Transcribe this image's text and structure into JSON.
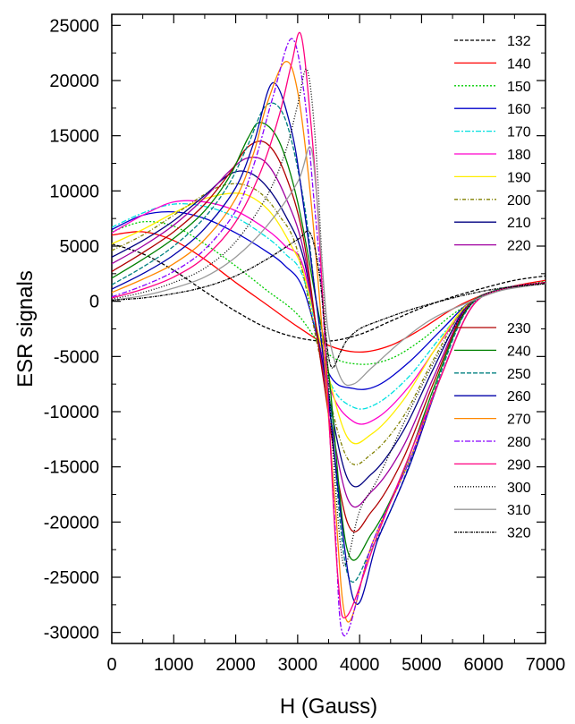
{
  "chart_data": {
    "type": "line",
    "title": "",
    "xlabel": "H (Gauss)",
    "ylabel": "ESR signals",
    "xlim": [
      0,
      7000
    ],
    "ylim": [
      -31000,
      26000
    ],
    "x_ticks": [
      0,
      1000,
      2000,
      3000,
      4000,
      5000,
      6000,
      7000
    ],
    "y_ticks": [
      -30000,
      -25000,
      -20000,
      -15000,
      -10000,
      -5000,
      0,
      5000,
      10000,
      15000,
      20000,
      25000
    ],
    "x_tick_labels": [
      "0",
      "1000",
      "2000",
      "3000",
      "4000",
      "5000",
      "6000",
      "7000"
    ],
    "y_tick_labels": [
      "-30000",
      "-25000",
      "-20000",
      "-15000",
      "-10000",
      "-5000",
      "0",
      "5000",
      "10000",
      "15000",
      "20000",
      "25000"
    ],
    "grid": false,
    "legend_position": "right, split in two columns of entries (132–220 upper, 230–320 lower)",
    "series": [
      {
        "name": "132",
        "color": "#000000",
        "dash": "4,2",
        "x": [
          0,
          500,
          1000,
          1500,
          2000,
          2500,
          3000,
          3500,
          4000,
          4500,
          5000,
          5500,
          6000,
          6500,
          7000
        ],
        "y": [
          5200,
          4300,
          2800,
          900,
          -900,
          -2400,
          -3300,
          -3600,
          -3000,
          -1800,
          -600,
          400,
          1200,
          1900,
          2300
        ]
      },
      {
        "name": "140",
        "color": "#ff0000",
        "dash": "",
        "x": [
          0,
          500,
          1000,
          1500,
          2000,
          2500,
          3000,
          3500,
          4000,
          4500,
          5000,
          5500,
          6000,
          6500,
          7000
        ],
        "y": [
          6000,
          6300,
          5500,
          3800,
          1700,
          -300,
          -2300,
          -4000,
          -4600,
          -4000,
          -2500,
          -700,
          600,
          1400,
          1900
        ]
      },
      {
        "name": "150",
        "color": "#00cc00",
        "dash": "2,2",
        "x": [
          0,
          500,
          1000,
          1500,
          2000,
          2500,
          3000,
          3500,
          4000,
          4500,
          5000,
          5500,
          6000,
          6500,
          7000
        ],
        "y": [
          6300,
          7200,
          6800,
          5200,
          3200,
          1000,
          -1200,
          -4800,
          -5700,
          -5200,
          -3500,
          -1200,
          500,
          1300,
          1800
        ]
      },
      {
        "name": "160",
        "color": "#0000cc",
        "dash": "",
        "x": [
          0,
          500,
          1000,
          1500,
          2000,
          2500,
          2800,
          3100,
          3500,
          3900,
          4300,
          4800,
          5300,
          5800,
          6300,
          7000
        ],
        "y": [
          6500,
          7800,
          8100,
          7500,
          6200,
          4500,
          3200,
          1000,
          -6500,
          -7900,
          -7600,
          -5500,
          -2700,
          0,
          1100,
          1700
        ]
      },
      {
        "name": "170",
        "color": "#00e0e0",
        "dash": "6,2,2,2",
        "x": [
          0,
          500,
          1000,
          1500,
          2000,
          2500,
          2800,
          3100,
          3500,
          3900,
          4300,
          4800,
          5300,
          5800,
          6300,
          7000
        ],
        "y": [
          6700,
          8000,
          8800,
          8600,
          7600,
          5800,
          4300,
          2000,
          -7000,
          -9600,
          -9200,
          -6800,
          -3300,
          -100,
          1100,
          1700
        ]
      },
      {
        "name": "180",
        "color": "#ff00cc",
        "dash": "",
        "x": [
          0,
          500,
          1000,
          1500,
          2000,
          2500,
          2800,
          3100,
          3500,
          3900,
          4300,
          4800,
          5300,
          5800,
          6300,
          7000
        ],
        "y": [
          6200,
          7800,
          9000,
          9000,
          8200,
          6500,
          5000,
          3000,
          -7500,
          -10900,
          -10500,
          -7700,
          -3700,
          -100,
          1100,
          1700
        ]
      },
      {
        "name": "190",
        "color": "#ffee00",
        "dash": "",
        "x": [
          0,
          500,
          1000,
          1500,
          2000,
          2300,
          2600,
          2900,
          3100,
          3400,
          3800,
          4200,
          4700,
          5200,
          5700,
          6200,
          7000
        ],
        "y": [
          5200,
          6500,
          8000,
          9300,
          9800,
          9300,
          7800,
          5000,
          2500,
          -4500,
          -12300,
          -12000,
          -9000,
          -4500,
          -500,
          1000,
          1700
        ]
      },
      {
        "name": "200",
        "color": "#808000",
        "dash": "4,2,1,2",
        "x": [
          0,
          500,
          1000,
          1500,
          1800,
          2100,
          2400,
          2700,
          3000,
          3400,
          3800,
          4200,
          4700,
          5200,
          5700,
          6200,
          7000
        ],
        "y": [
          4600,
          6000,
          7800,
          9700,
          10500,
          10600,
          9800,
          7800,
          4500,
          -6000,
          -14200,
          -13800,
          -10500,
          -5200,
          -600,
          1000,
          1700
        ]
      },
      {
        "name": "210",
        "color": "#000080",
        "dash": "",
        "x": [
          0,
          500,
          1000,
          1500,
          1900,
          2200,
          2500,
          2800,
          3100,
          3400,
          3800,
          4200,
          4700,
          5200,
          5700,
          6200,
          7000
        ],
        "y": [
          4000,
          5500,
          7300,
          9600,
          11500,
          11700,
          10400,
          7800,
          3800,
          -5500,
          -16000,
          -15600,
          -11800,
          -6000,
          -700,
          1000,
          1700
        ]
      },
      {
        "name": "220",
        "color": "#a000a0",
        "dash": "",
        "x": [
          0,
          500,
          1000,
          1500,
          1900,
          2200,
          2500,
          2800,
          3100,
          3400,
          3800,
          4200,
          4700,
          5200,
          5700,
          6200,
          7000
        ],
        "y": [
          3400,
          5000,
          6900,
          9400,
          11800,
          13000,
          12500,
          9500,
          4500,
          -6000,
          -17800,
          -17200,
          -13200,
          -6800,
          -800,
          1000,
          1700
        ]
      },
      {
        "name": "230",
        "color": "#b00000",
        "dash": "",
        "x": [
          0,
          500,
          1000,
          1500,
          1900,
          2200,
          2500,
          2800,
          3100,
          3400,
          3800,
          4200,
          4700,
          5200,
          5700,
          6200,
          7000
        ],
        "y": [
          2700,
          4400,
          6300,
          8800,
          11600,
          14000,
          14300,
          11500,
          5500,
          -6500,
          -20000,
          -19000,
          -14300,
          -7300,
          -900,
          1000,
          1700
        ]
      },
      {
        "name": "240",
        "color": "#008000",
        "dash": "",
        "x": [
          0,
          500,
          1000,
          1500,
          1900,
          2200,
          2400,
          2700,
          3000,
          3300,
          3500,
          3800,
          4200,
          4700,
          5200,
          5700,
          6200,
          7000
        ],
        "y": [
          2100,
          3800,
          5700,
          8200,
          11300,
          14800,
          16200,
          14500,
          9000,
          0,
          -6500,
          -22500,
          -21000,
          -15500,
          -7800,
          -1000,
          1000,
          1700
        ]
      },
      {
        "name": "250",
        "color": "#008080",
        "dash": "5,2",
        "x": [
          0,
          500,
          1000,
          1500,
          1900,
          2200,
          2500,
          2800,
          3100,
          3300,
          3500,
          3800,
          4200,
          4700,
          5200,
          5700,
          6200,
          7000
        ],
        "y": [
          1500,
          3100,
          5000,
          7600,
          10700,
          14200,
          17800,
          16500,
          9000,
          0,
          -8000,
          -24600,
          -22300,
          -16300,
          -8200,
          -1100,
          1000,
          1700
        ]
      },
      {
        "name": "260",
        "color": "#0000aa",
        "dash": "",
        "x": [
          0,
          500,
          1000,
          1500,
          2000,
          2300,
          2600,
          2900,
          3100,
          3300,
          3500,
          3900,
          4300,
          4800,
          5300,
          5800,
          6300,
          7000
        ],
        "y": [
          1100,
          2500,
          4200,
          6600,
          10300,
          14500,
          19800,
          15500,
          8500,
          0,
          -9000,
          -27000,
          -21500,
          -15000,
          -7000,
          -600,
          1100,
          1700
        ]
      },
      {
        "name": "270",
        "color": "#ff8800",
        "dash": "",
        "x": [
          0,
          500,
          1000,
          1500,
          2000,
          2300,
          2500,
          2800,
          3000,
          3200,
          3400,
          3600,
          3800,
          4200,
          4800,
          5300,
          5800,
          6300,
          7000
        ],
        "y": [
          800,
          2000,
          3400,
          5600,
          9300,
          13600,
          17800,
          21700,
          19000,
          10000,
          -3000,
          -18000,
          -29000,
          -22000,
          -14500,
          -7000,
          -600,
          1100,
          1700
        ]
      },
      {
        "name": "280",
        "color": "#8800ff",
        "dash": "6,2,2,2",
        "x": [
          0,
          500,
          1000,
          1500,
          2000,
          2300,
          2600,
          2900,
          3100,
          3250,
          3400,
          3600,
          3750,
          4200,
          4800,
          5300,
          5800,
          6300,
          7000
        ],
        "y": [
          400,
          1400,
          2700,
          4700,
          8200,
          12500,
          18500,
          23800,
          19000,
          10000,
          0,
          -20000,
          -30300,
          -22000,
          -14500,
          -7000,
          -600,
          1100,
          1700
        ]
      },
      {
        "name": "290",
        "color": "#ff0080",
        "dash": "",
        "x": [
          0,
          500,
          1000,
          1500,
          2000,
          2400,
          2700,
          2900,
          3050,
          3200,
          3350,
          3500,
          3650,
          3800,
          4300,
          4800,
          5300,
          5800,
          6300,
          7000
        ],
        "y": [
          300,
          1100,
          2200,
          4000,
          7200,
          11700,
          16800,
          21500,
          24200,
          17000,
          6000,
          -10000,
          -25000,
          -28500,
          -21000,
          -14000,
          -7000,
          -600,
          1100,
          1700
        ]
      },
      {
        "name": "300",
        "color": "#000000",
        "dash": "1,2",
        "x": [
          0,
          500,
          1000,
          1500,
          2000,
          2500,
          2800,
          3000,
          3150,
          3280,
          3400,
          3550,
          3700,
          3800,
          4000,
          4300,
          4800,
          5300,
          5800,
          6300,
          7000
        ],
        "y": [
          200,
          800,
          1700,
          3000,
          5400,
          9500,
          13500,
          17800,
          21000,
          15000,
          3000,
          -12000,
          -22500,
          -23500,
          -19000,
          -16000,
          -10000,
          -4500,
          -300,
          1100,
          1700
        ]
      },
      {
        "name": "310",
        "color": "#999999",
        "dash": "",
        "x": [
          0,
          500,
          1000,
          1500,
          2000,
          2500,
          3000,
          3200,
          3300,
          3400,
          3500,
          3700,
          3900,
          4200,
          4700,
          5200,
          5800,
          6300,
          7000
        ],
        "y": [
          100,
          500,
          1200,
          2200,
          4000,
          6800,
          10800,
          14000,
          10000,
          3000,
          -3000,
          -7000,
          -7500,
          -6000,
          -3500,
          -1500,
          0,
          1000,
          1600
        ]
      },
      {
        "name": "320",
        "color": "#000000",
        "dash": "3,1,1,1",
        "x": [
          0,
          500,
          1000,
          1500,
          2000,
          2500,
          3000,
          3200,
          3350,
          3450,
          3550,
          3700,
          3800,
          4000,
          4300,
          4800,
          5300,
          5800,
          6300,
          7000
        ],
        "y": [
          100,
          300,
          700,
          1300,
          2300,
          3800,
          5600,
          6200,
          2500,
          -3000,
          -6000,
          -4500,
          -3500,
          -2500,
          -1800,
          -800,
          0,
          700,
          1200,
          1600
        ]
      }
    ]
  }
}
